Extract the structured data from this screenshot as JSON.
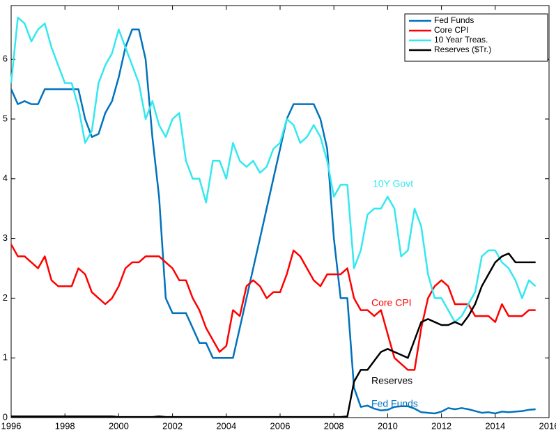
{
  "chart_data": {
    "type": "line",
    "x": [
      1996,
      1996.25,
      1996.5,
      1996.75,
      1997,
      1997.25,
      1997.5,
      1997.75,
      1998,
      1998.25,
      1998.5,
      1998.75,
      1999,
      1999.25,
      1999.5,
      1999.75,
      2000,
      2000.25,
      2000.5,
      2000.75,
      2001,
      2001.25,
      2001.5,
      2001.75,
      2002,
      2002.25,
      2002.5,
      2002.75,
      2003,
      2003.25,
      2003.5,
      2003.75,
      2004,
      2004.25,
      2004.5,
      2004.75,
      2005,
      2005.25,
      2005.5,
      2005.75,
      2006,
      2006.25,
      2006.5,
      2006.75,
      2007,
      2007.25,
      2007.5,
      2007.75,
      2008,
      2008.25,
      2008.5,
      2008.75,
      2009,
      2009.25,
      2009.5,
      2009.75,
      2010,
      2010.25,
      2010.5,
      2010.75,
      2011,
      2011.25,
      2011.5,
      2011.75,
      2012,
      2012.25,
      2012.5,
      2012.75,
      2013,
      2013.25,
      2013.5,
      2013.75,
      2014,
      2014.25,
      2014.5,
      2014.75,
      2015,
      2015.25,
      2015.5
    ],
    "series": [
      {
        "name": "Fed Funds",
        "color": "#0072bd",
        "values": [
          5.5,
          5.25,
          5.3,
          5.25,
          5.25,
          5.5,
          5.5,
          5.5,
          5.5,
          5.5,
          5.5,
          5.0,
          4.7,
          4.75,
          5.1,
          5.3,
          5.7,
          6.2,
          6.5,
          6.5,
          6.0,
          4.7,
          3.7,
          2.0,
          1.75,
          1.75,
          1.75,
          1.5,
          1.25,
          1.25,
          1.0,
          1.0,
          1.0,
          1.0,
          1.5,
          2.0,
          2.5,
          3.0,
          3.5,
          4.0,
          4.5,
          5.0,
          5.25,
          5.25,
          5.25,
          5.25,
          5.0,
          4.5,
          3.0,
          2.0,
          2.0,
          0.5,
          0.18,
          0.2,
          0.15,
          0.12,
          0.13,
          0.18,
          0.19,
          0.19,
          0.15,
          0.09,
          0.08,
          0.07,
          0.1,
          0.16,
          0.14,
          0.16,
          0.14,
          0.11,
          0.08,
          0.09,
          0.07,
          0.1,
          0.09,
          0.1,
          0.11,
          0.13,
          0.14
        ]
      },
      {
        "name": "Core CPI",
        "color": "#ff0000",
        "values": [
          2.9,
          2.7,
          2.7,
          2.6,
          2.5,
          2.7,
          2.3,
          2.2,
          2.2,
          2.2,
          2.5,
          2.4,
          2.1,
          2.0,
          1.9,
          2.0,
          2.2,
          2.5,
          2.6,
          2.6,
          2.7,
          2.7,
          2.7,
          2.6,
          2.5,
          2.3,
          2.3,
          2.0,
          1.8,
          1.5,
          1.3,
          1.1,
          1.2,
          1.8,
          1.7,
          2.2,
          2.3,
          2.2,
          2.0,
          2.1,
          2.1,
          2.4,
          2.8,
          2.7,
          2.5,
          2.3,
          2.2,
          2.4,
          2.4,
          2.4,
          2.5,
          2.0,
          1.8,
          1.8,
          1.7,
          1.8,
          1.4,
          1.0,
          0.9,
          0.8,
          0.8,
          1.5,
          2.0,
          2.2,
          2.3,
          2.2,
          1.9,
          1.9,
          1.9,
          1.7,
          1.7,
          1.7,
          1.6,
          1.9,
          1.7,
          1.7,
          1.7,
          1.8,
          1.8
        ]
      },
      {
        "name": "10 Year Treas.",
        "color": "#33e8f0",
        "values": [
          5.6,
          6.7,
          6.6,
          6.3,
          6.5,
          6.6,
          6.2,
          5.9,
          5.6,
          5.6,
          5.2,
          4.6,
          4.8,
          5.6,
          5.9,
          6.1,
          6.5,
          6.2,
          5.9,
          5.6,
          5.0,
          5.3,
          4.9,
          4.7,
          5.0,
          5.1,
          4.3,
          4.0,
          4.0,
          3.6,
          4.3,
          4.3,
          4.0,
          4.6,
          4.3,
          4.2,
          4.3,
          4.1,
          4.2,
          4.5,
          4.6,
          5.0,
          4.9,
          4.6,
          4.7,
          4.9,
          4.7,
          4.3,
          3.7,
          3.9,
          3.9,
          2.5,
          2.8,
          3.4,
          3.5,
          3.5,
          3.7,
          3.5,
          2.7,
          2.8,
          3.5,
          3.2,
          2.4,
          2.0,
          2.0,
          1.8,
          1.6,
          1.7,
          1.9,
          2.1,
          2.7,
          2.8,
          2.8,
          2.6,
          2.5,
          2.3,
          2.0,
          2.3,
          2.2
        ]
      },
      {
        "name": "Reserves ($Tr.)",
        "color": "#000000",
        "values": [
          0.02,
          0.02,
          0.02,
          0.02,
          0.02,
          0.02,
          0.02,
          0.02,
          0.02,
          0.02,
          0.02,
          0.02,
          0.02,
          0.02,
          0.02,
          0.02,
          0.01,
          0.01,
          0.01,
          0.01,
          0.01,
          0.01,
          0.02,
          0.01,
          0.01,
          0.01,
          0.01,
          0.01,
          0.01,
          0.01,
          0.01,
          0.01,
          0.01,
          0.01,
          0.01,
          0.01,
          0.01,
          0.01,
          0.01,
          0.01,
          0.01,
          0.01,
          0.01,
          0.01,
          0.01,
          0.01,
          0.01,
          0.01,
          0.01,
          0.01,
          0.02,
          0.6,
          0.8,
          0.8,
          0.95,
          1.1,
          1.15,
          1.1,
          1.05,
          1.0,
          1.3,
          1.6,
          1.65,
          1.6,
          1.55,
          1.55,
          1.6,
          1.55,
          1.7,
          1.9,
          2.2,
          2.4,
          2.6,
          2.7,
          2.75,
          2.6,
          2.6,
          2.6,
          2.6
        ]
      }
    ],
    "annotations": [
      "10Y Govt",
      "Core CPI",
      "Reserves",
      "Fed Funds"
    ],
    "xlim": [
      1996,
      2016
    ],
    "xticks": [
      1996,
      1998,
      2000,
      2002,
      2004,
      2006,
      2008,
      2010,
      2012,
      2014,
      2016
    ],
    "ylim": [
      0,
      6.9
    ],
    "yticks": [
      0,
      1,
      2,
      3,
      4,
      5,
      6
    ],
    "legend": "upper right",
    "grid": false
  }
}
